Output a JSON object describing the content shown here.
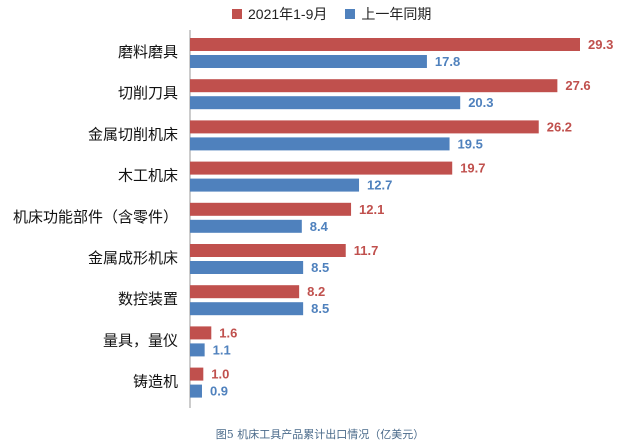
{
  "chart_data": {
    "type": "bar",
    "orientation": "horizontal",
    "categories": [
      "磨料磨具",
      "切削刀具",
      "金属切削机床",
      "木工机床",
      "机床功能部件（含零件）",
      "金属成形机床",
      "数控装置",
      "量具，量仪",
      "铸造机"
    ],
    "series": [
      {
        "name": "2021年1-9月",
        "values": [
          29.3,
          27.6,
          26.2,
          19.7,
          12.1,
          11.7,
          8.2,
          1.6,
          1.0
        ],
        "color": "#c0504d"
      },
      {
        "name": "上一年同期",
        "values": [
          17.8,
          20.3,
          19.5,
          12.7,
          8.4,
          8.5,
          8.5,
          1.1,
          0.9
        ],
        "color": "#4f81bd"
      }
    ],
    "value_labels": [
      [
        "29.3",
        "27.6",
        "26.2",
        "19.7",
        "12.1",
        "11.7",
        "8.2",
        "1.6",
        "1.0"
      ],
      [
        "17.8",
        "20.3",
        "19.5",
        "12.7",
        "8.4",
        "8.5",
        "8.5",
        "1.1",
        "0.9"
      ]
    ],
    "xlim": [
      0,
      29.3
    ],
    "legend_position": "top",
    "grid": false
  },
  "caption": "图5 机床工具产品累计出口情况（亿美元）"
}
